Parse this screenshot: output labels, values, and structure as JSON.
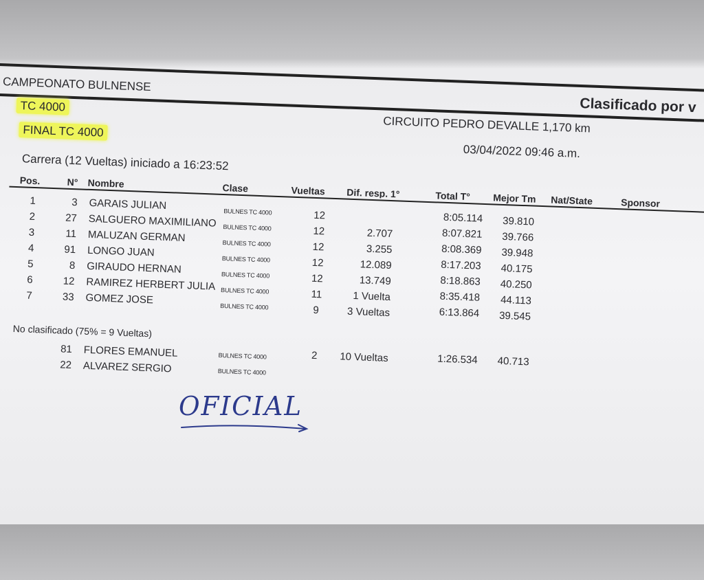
{
  "header": {
    "championship": "CAMPEONATO BULNENSE",
    "classified_by": "Clasificado por v",
    "category": "TC 4000",
    "session": "FINAL TC 4000",
    "circuit": "CIRCUITO PEDRO DEVALLE 1,170 km",
    "datetime": "03/04/2022 09:46 a.m.",
    "race_info": "Carrera (12 Vueltas) iniciado a 16:23:52"
  },
  "table": {
    "columns": [
      "Pos.",
      "N°",
      "Nombre",
      "Clase",
      "Vueltas",
      "Dif. resp. 1°",
      "Total T°",
      "Mejor Tm",
      "Nat/State",
      "Sponsor"
    ],
    "rows": [
      {
        "pos": "1",
        "num": "3",
        "name": "GARAIS JULIAN",
        "clase": "BULNES TC 4000",
        "laps": "12",
        "diff": "",
        "total": "8:05.114",
        "best": "39.810"
      },
      {
        "pos": "2",
        "num": "27",
        "name": "SALGUERO MAXIMILIANO",
        "clase": "BULNES TC 4000",
        "laps": "12",
        "diff": "2.707",
        "total": "8:07.821",
        "best": "39.766"
      },
      {
        "pos": "3",
        "num": "11",
        "name": "MALUZAN GERMAN",
        "clase": "BULNES TC 4000",
        "laps": "12",
        "diff": "3.255",
        "total": "8:08.369",
        "best": "39.948"
      },
      {
        "pos": "4",
        "num": "91",
        "name": "LONGO JUAN",
        "clase": "BULNES TC 4000",
        "laps": "12",
        "diff": "12.089",
        "total": "8:17.203",
        "best": "40.175"
      },
      {
        "pos": "5",
        "num": "8",
        "name": "GIRAUDO HERNAN",
        "clase": "BULNES TC 4000",
        "laps": "12",
        "diff": "13.749",
        "total": "8:18.863",
        "best": "40.250"
      },
      {
        "pos": "6",
        "num": "12",
        "name": "RAMIREZ HERBERT JULIA",
        "clase": "BULNES TC 4000",
        "laps": "11",
        "diff": "1 Vuelta",
        "total": "8:35.418",
        "best": "44.113"
      },
      {
        "pos": "7",
        "num": "33",
        "name": "GOMEZ JOSE",
        "clase": "BULNES TC 4000",
        "laps": "9",
        "diff": "3 Vueltas",
        "total": "6:13.864",
        "best": "39.545"
      }
    ],
    "not_classified_label": "No clasificado (75% = 9 Vueltas)",
    "not_classified": [
      {
        "num": "81",
        "name": "FLORES EMANUEL",
        "clase": "BULNES TC 4000",
        "laps": "2",
        "diff": "10 Vueltas",
        "total": "1:26.534",
        "best": "40.713"
      },
      {
        "num": "22",
        "name": "ALVAREZ SERGIO",
        "clase": "BULNES TC 4000",
        "laps": "",
        "diff": "",
        "total": "",
        "best": ""
      }
    ]
  },
  "handwriting": {
    "text": "OFICIAL",
    "ink_color": "#2c3a8c"
  },
  "colors": {
    "highlight": "#eef55a",
    "ink": "#2a2a2e"
  }
}
